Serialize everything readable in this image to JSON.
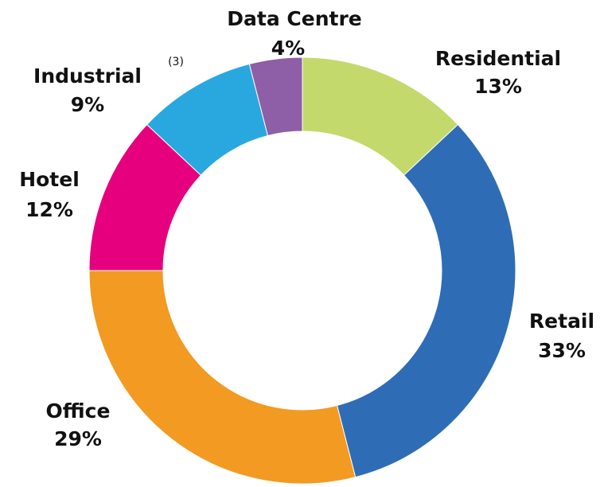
{
  "chart_data": {
    "type": "donut",
    "categories": [
      "Residential",
      "Retail",
      "Office",
      "Hotel",
      "Industrial",
      "Data Centre"
    ],
    "values": [
      13,
      33,
      29,
      12,
      9,
      4
    ],
    "value_labels": [
      "13%",
      "33%",
      "29%",
      "12%",
      "9%",
      "4%"
    ],
    "superscripts": [
      null,
      null,
      null,
      null,
      "(3)",
      null
    ],
    "colors": [
      "#c3d96b",
      "#2e6db5",
      "#f29a22",
      "#e6007e",
      "#29a8e0",
      "#8e5ea6"
    ]
  }
}
